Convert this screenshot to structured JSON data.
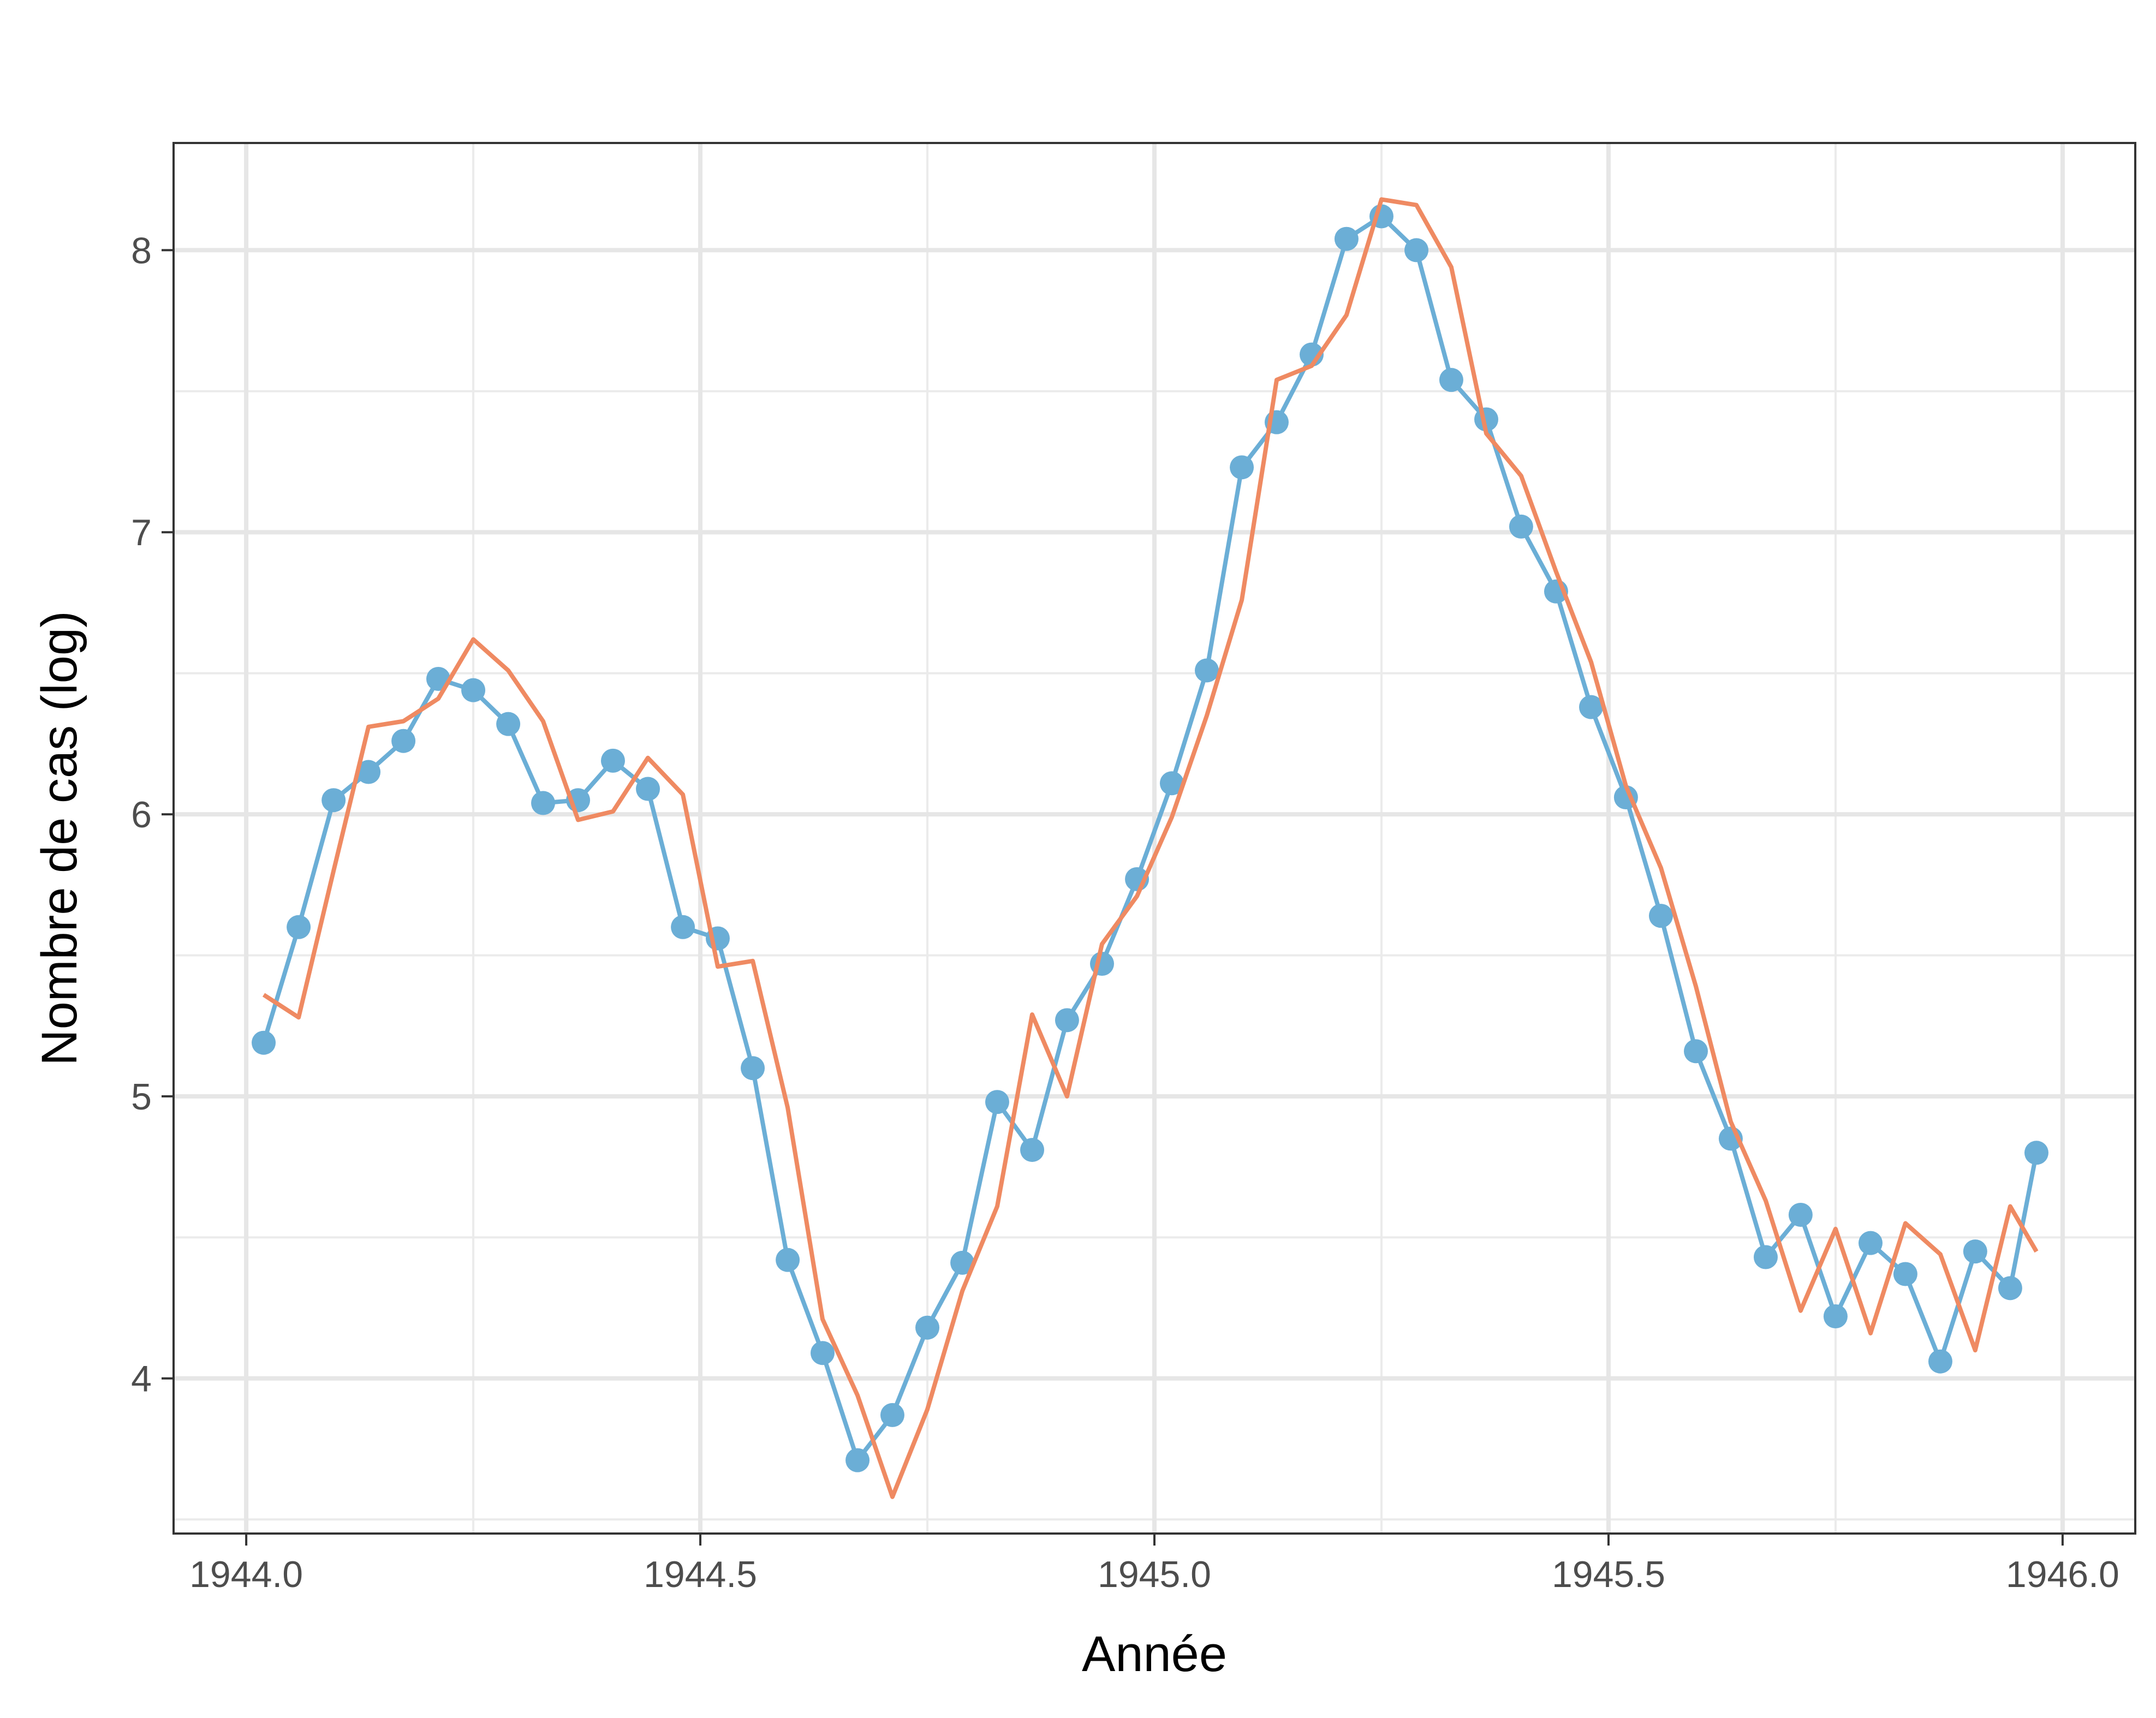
{
  "chart_data": {
    "type": "line",
    "title": "",
    "xlabel": "Année",
    "ylabel": "Nombre de cas (log)",
    "xlim": [
      1943.92,
      1946.08
    ],
    "ylim": [
      3.45,
      8.38
    ],
    "x_ticks": [
      1944.0,
      1944.5,
      1945.0,
      1945.5,
      1946.0
    ],
    "x_tick_labels": [
      "1944.0",
      "1944.5",
      "1945.0",
      "1945.5",
      "1946.0"
    ],
    "y_ticks": [
      4,
      5,
      6,
      7,
      8
    ],
    "y_tick_labels": [
      "4",
      "5",
      "6",
      "7",
      "8"
    ],
    "grid": true,
    "legend": "none",
    "series": [
      {
        "style": "line-markers",
        "color": "#6baed6",
        "x": [
          1944.0192,
          1944.0577,
          1944.0962,
          1944.1346,
          1944.1731,
          1944.2115,
          1944.25,
          1944.2885,
          1944.3269,
          1944.3654,
          1944.4038,
          1944.4423,
          1944.4808,
          1944.5192,
          1944.5577,
          1944.5962,
          1944.6346,
          1944.6731,
          1944.7115,
          1944.75,
          1944.7885,
          1944.8269,
          1944.8654,
          1944.9038,
          1944.9423,
          1944.9808,
          1945.0192,
          1945.0577,
          1945.0962,
          1945.1346,
          1945.1731,
          1945.2115,
          1945.25,
          1945.2885,
          1945.3269,
          1945.3654,
          1945.4038,
          1945.4423,
          1945.4808,
          1945.5192,
          1945.5577,
          1945.5962,
          1945.6346,
          1945.6731,
          1945.7115,
          1945.75,
          1945.7885,
          1945.8269,
          1945.8654,
          1945.9038,
          1945.9423,
          1945.9712
        ],
        "values": [
          5.19,
          5.6,
          6.05,
          6.15,
          6.26,
          6.48,
          6.44,
          6.32,
          6.04,
          6.05,
          6.19,
          6.09,
          5.6,
          5.56,
          5.1,
          4.42,
          4.09,
          3.71,
          3.87,
          4.18,
          4.41,
          4.98,
          4.81,
          5.27,
          5.47,
          5.77,
          6.11,
          6.51,
          7.23,
          7.39,
          7.63,
          8.04,
          8.12,
          8.0,
          7.54,
          7.4,
          7.02,
          6.79,
          6.38,
          6.06,
          5.64,
          5.16,
          4.85,
          4.43,
          4.58,
          4.22,
          4.48,
          4.37,
          4.06,
          4.45,
          4.32,
          4.8
        ]
      },
      {
        "style": "line",
        "color": "#ef8a62",
        "x": [
          1944.0192,
          1944.0577,
          1944.0962,
          1944.1346,
          1944.1731,
          1944.2115,
          1944.25,
          1944.2885,
          1944.3269,
          1944.3654,
          1944.4038,
          1944.4423,
          1944.4808,
          1944.5192,
          1944.5577,
          1944.5962,
          1944.6346,
          1944.6731,
          1944.7115,
          1944.75,
          1944.7885,
          1944.8269,
          1944.8654,
          1944.9038,
          1944.9423,
          1944.9808,
          1945.0192,
          1945.0577,
          1945.0962,
          1945.1346,
          1945.1731,
          1945.2115,
          1945.25,
          1945.2885,
          1945.3269,
          1945.3654,
          1945.4038,
          1945.4423,
          1945.4808,
          1945.5192,
          1945.5577,
          1945.5962,
          1945.6346,
          1945.6731,
          1945.7115,
          1945.75,
          1945.7885,
          1945.8269,
          1945.8654,
          1945.9038,
          1945.9423,
          1945.9712
        ],
        "values": [
          5.36,
          5.28,
          5.8,
          6.31,
          6.33,
          6.41,
          6.62,
          6.51,
          6.33,
          5.98,
          6.01,
          6.2,
          6.07,
          5.46,
          5.48,
          4.96,
          4.21,
          3.94,
          3.58,
          3.89,
          4.31,
          4.61,
          5.29,
          5.0,
          5.54,
          5.71,
          5.99,
          6.35,
          6.76,
          7.54,
          7.59,
          7.77,
          8.18,
          8.16,
          7.94,
          7.35,
          7.2,
          6.86,
          6.54,
          6.1,
          5.81,
          5.39,
          4.91,
          4.63,
          4.24,
          4.53,
          4.16,
          4.55,
          4.44,
          4.1,
          4.61,
          4.45
        ]
      }
    ]
  }
}
